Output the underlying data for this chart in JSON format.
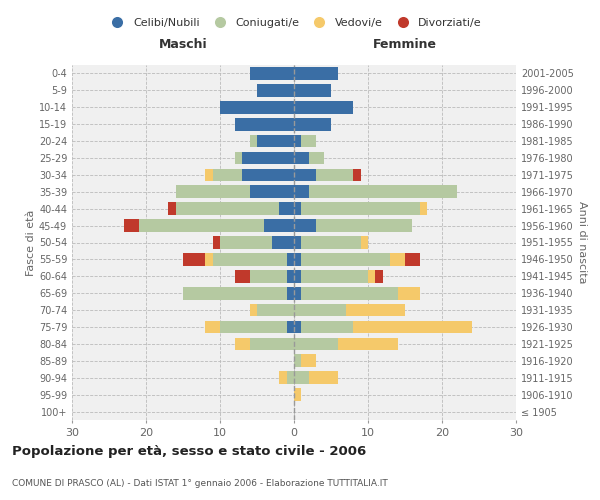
{
  "age_groups": [
    "100+",
    "95-99",
    "90-94",
    "85-89",
    "80-84",
    "75-79",
    "70-74",
    "65-69",
    "60-64",
    "55-59",
    "50-54",
    "45-49",
    "40-44",
    "35-39",
    "30-34",
    "25-29",
    "20-24",
    "15-19",
    "10-14",
    "5-9",
    "0-4"
  ],
  "birth_years": [
    "≤ 1905",
    "1906-1910",
    "1911-1915",
    "1916-1920",
    "1921-1925",
    "1926-1930",
    "1931-1935",
    "1936-1940",
    "1941-1945",
    "1946-1950",
    "1951-1955",
    "1956-1960",
    "1961-1965",
    "1966-1970",
    "1971-1975",
    "1976-1980",
    "1981-1985",
    "1986-1990",
    "1991-1995",
    "1996-2000",
    "2001-2005"
  ],
  "males": {
    "celibi": [
      0,
      0,
      0,
      0,
      0,
      1,
      0,
      1,
      1,
      1,
      3,
      4,
      2,
      6,
      7,
      7,
      5,
      8,
      10,
      5,
      6
    ],
    "coniugati": [
      0,
      0,
      1,
      0,
      6,
      9,
      5,
      14,
      5,
      10,
      7,
      17,
      14,
      10,
      4,
      1,
      1,
      0,
      0,
      0,
      0
    ],
    "vedovi": [
      0,
      0,
      1,
      0,
      2,
      2,
      1,
      0,
      0,
      1,
      0,
      0,
      0,
      0,
      1,
      0,
      0,
      0,
      0,
      0,
      0
    ],
    "divorziati": [
      0,
      0,
      0,
      0,
      0,
      0,
      0,
      0,
      2,
      3,
      1,
      2,
      1,
      0,
      0,
      0,
      0,
      0,
      0,
      0,
      0
    ]
  },
  "females": {
    "nubili": [
      0,
      0,
      0,
      0,
      0,
      1,
      0,
      1,
      1,
      1,
      1,
      3,
      1,
      2,
      3,
      2,
      1,
      5,
      8,
      5,
      6
    ],
    "coniugate": [
      0,
      0,
      2,
      1,
      6,
      7,
      7,
      13,
      9,
      12,
      8,
      13,
      16,
      20,
      5,
      2,
      2,
      0,
      0,
      0,
      0
    ],
    "vedove": [
      0,
      1,
      4,
      2,
      8,
      16,
      8,
      3,
      1,
      2,
      1,
      0,
      1,
      0,
      0,
      0,
      0,
      0,
      0,
      0,
      0
    ],
    "divorziate": [
      0,
      0,
      0,
      0,
      0,
      0,
      0,
      0,
      1,
      2,
      0,
      0,
      0,
      0,
      1,
      0,
      0,
      0,
      0,
      0,
      0
    ]
  },
  "colors": {
    "celibi": "#3a6ea5",
    "coniugati": "#b5c9a1",
    "vedovi": "#f5c96a",
    "divorziati": "#c0392b"
  },
  "xlim": 30,
  "title": "Popolazione per età, sesso e stato civile - 2006",
  "subtitle": "COMUNE DI PRASCO (AL) - Dati ISTAT 1° gennaio 2006 - Elaborazione TUTTITALIA.IT",
  "ylabel_left": "Fasce di età",
  "ylabel_right": "Anni di nascita",
  "xlabel_left": "Maschi",
  "xlabel_right": "Femmine",
  "legend_labels": [
    "Celibi/Nubili",
    "Coniugati/e",
    "Vedovi/e",
    "Divorziati/e"
  ],
  "background_color": "#f0f0f0"
}
